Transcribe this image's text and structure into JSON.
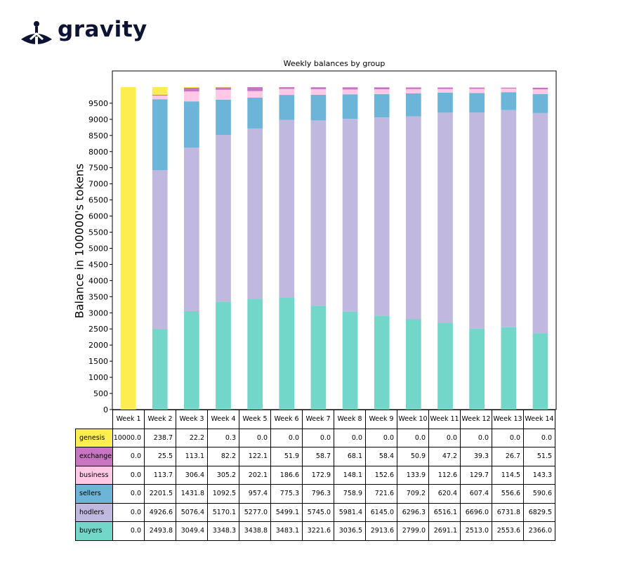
{
  "logo": {
    "name": "gravity"
  },
  "chart_data": {
    "type": "bar",
    "stacked": true,
    "title": "Weekly balances by group",
    "ylabel": "Balance in 100000's tokens",
    "ylim": [
      0,
      10500
    ],
    "yticks": [
      "0",
      "500",
      "1000",
      "1500",
      "2000",
      "2500",
      "3000",
      "3500",
      "4000",
      "4500",
      "5000",
      "5500",
      "6000",
      "6500",
      "7000",
      "7500",
      "8000",
      "8500",
      "9000",
      "9500"
    ],
    "categories": [
      "Week 1",
      "Week 2",
      "Week 3",
      "Week 4",
      "Week 5",
      "Week 6",
      "Week 7",
      "Week 8",
      "Week 9",
      "Week 10",
      "Week 11",
      "Week 12",
      "Week 13",
      "Week 14"
    ],
    "series": [
      {
        "name": "buyers",
        "color": "#72d6c9",
        "values": [
          "0.0",
          "2493.8",
          "3049.4",
          "3348.3",
          "3438.8",
          "3483.1",
          "3221.6",
          "3036.5",
          "2913.6",
          "2799.0",
          "2691.1",
          "2513.0",
          "2553.6",
          "2366.0"
        ]
      },
      {
        "name": "hodlers",
        "color": "#c0b8de",
        "values": [
          "0.0",
          "4926.6",
          "5076.4",
          "5170.1",
          "5277.0",
          "5499.1",
          "5745.0",
          "5981.4",
          "6145.0",
          "6296.3",
          "6516.1",
          "6696.0",
          "6731.8",
          "6829.5"
        ]
      },
      {
        "name": "sellers",
        "color": "#6cb4d8",
        "values": [
          "0.0",
          "2201.5",
          "1431.8",
          "1092.5",
          "957.4",
          "775.3",
          "796.3",
          "758.9",
          "721.6",
          "709.2",
          "620.4",
          "607.4",
          "556.6",
          "590.6"
        ]
      },
      {
        "name": "business",
        "color": "#ffc9e6",
        "values": [
          "0.0",
          "113.7",
          "306.4",
          "305.2",
          "202.1",
          "186.6",
          "172.9",
          "148.1",
          "152.6",
          "133.9",
          "112.6",
          "129.7",
          "114.5",
          "143.3"
        ]
      },
      {
        "name": "exchange",
        "color": "#c774c2",
        "values": [
          "0.0",
          "25.5",
          "113.1",
          "82.2",
          "122.1",
          "51.9",
          "58.7",
          "68.1",
          "58.4",
          "50.9",
          "47.2",
          "39.3",
          "26.7",
          "51.5"
        ]
      },
      {
        "name": "genesis",
        "color": "#fded51",
        "values": [
          "10000.0",
          "238.7",
          "22.2",
          "0.3",
          "0.0",
          "0.0",
          "0.0",
          "0.0",
          "0.0",
          "0.0",
          "0.0",
          "0.0",
          "0.0",
          "0.0"
        ]
      }
    ],
    "table_row_order": [
      "genesis",
      "exchange",
      "business",
      "sellers",
      "hodlers",
      "buyers"
    ],
    "legend": "table-rows"
  }
}
